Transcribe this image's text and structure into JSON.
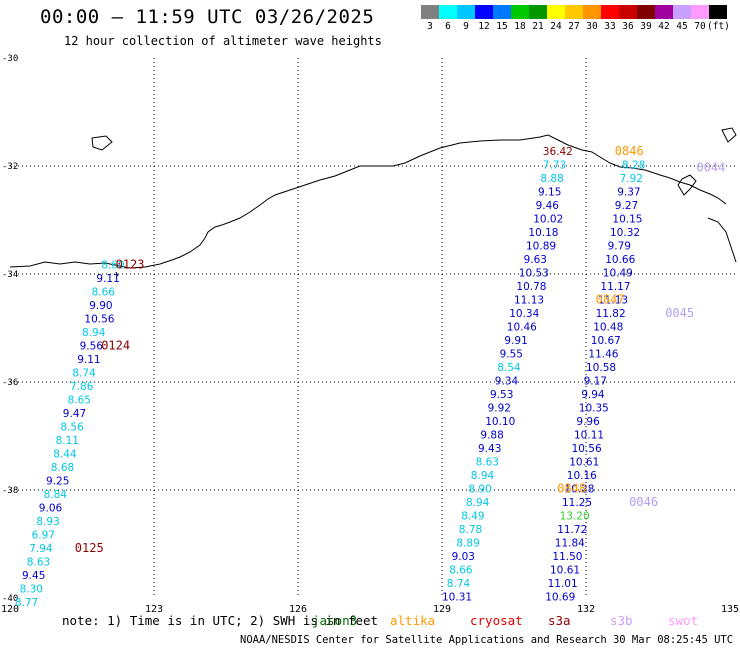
{
  "title": "00:00 – 11:59 UTC 03/26/2025",
  "subtitle": "12 hour collection of altimeter wave heights",
  "colorbar": {
    "colors": [
      "#808080",
      "#00ffff",
      "#00c8ff",
      "#0000ff",
      "#0078ff",
      "#00c800",
      "#009600",
      "#ffff00",
      "#ffc800",
      "#ff9600",
      "#ff0000",
      "#c80000",
      "#800000",
      "#a000a0",
      "#c8a0ff",
      "#ff9bff",
      "#000000"
    ],
    "labels": [
      "3",
      "6",
      "9",
      "12",
      "15",
      "18",
      "21",
      "24",
      "27",
      "30",
      "33",
      "36",
      "39",
      "42",
      "45",
      "70",
      "(ft)"
    ]
  },
  "axes": {
    "lat_labels": [
      "-30",
      "-32",
      "-34",
      "-36",
      "-38",
      "-40"
    ],
    "lon_labels": [
      "120",
      "123",
      "126",
      "129",
      "132",
      "135"
    ]
  },
  "note": {
    "prefix": "note: 1) Time is in UTC; 2) SWH is in feet",
    "satellites": [
      {
        "name": "jason3",
        "color": "#006400"
      },
      {
        "name": "altika",
        "color": "#ff9900"
      },
      {
        "name": "cryosat",
        "color": "#e00000"
      },
      {
        "name": "s3a",
        "color": "#8b0000"
      },
      {
        "name": "s3b",
        "color": "#c8a0ff"
      },
      {
        "name": "swot",
        "color": "#ff9bff"
      }
    ]
  },
  "credit": "NOAA/NESDIS Center for Satellite Applications and Research   30 Mar 08:25:45 UTC 2025",
  "tracks": [
    {
      "colors": {
        "cyan": "#00c8e6",
        "blue": "#0000cc"
      },
      "points": [
        {
          "v": "8.60",
          "c": "cyan",
          "lon": 121.9,
          "lat": -33.9
        },
        {
          "v": "9.11",
          "c": "blue",
          "lon": 121.8,
          "lat": -34.15
        },
        {
          "v": "8.66",
          "c": "cyan",
          "lon": 121.7,
          "lat": -34.4
        },
        {
          "v": "9.90",
          "c": "blue",
          "lon": 121.65,
          "lat": -34.65
        },
        {
          "v": "10.56",
          "c": "blue",
          "lon": 121.55,
          "lat": -34.9
        },
        {
          "v": "8.94",
          "c": "cyan",
          "lon": 121.5,
          "lat": -35.15
        },
        {
          "v": "9.56",
          "c": "blue",
          "lon": 121.45,
          "lat": -35.4
        },
        {
          "v": "9.11",
          "c": "blue",
          "lon": 121.4,
          "lat": -35.65
        },
        {
          "v": "8.74",
          "c": "cyan",
          "lon": 121.3,
          "lat": -35.9
        },
        {
          "v": "7.86",
          "c": "cyan",
          "lon": 121.25,
          "lat": -36.15
        },
        {
          "v": "8.65",
          "c": "cyan",
          "lon": 121.2,
          "lat": -36.4
        },
        {
          "v": "9.47",
          "c": "blue",
          "lon": 121.1,
          "lat": -36.65
        },
        {
          "v": "8.56",
          "c": "cyan",
          "lon": 121.05,
          "lat": -36.9
        },
        {
          "v": "8.11",
          "c": "cyan",
          "lon": 120.95,
          "lat": -37.15
        },
        {
          "v": "8.44",
          "c": "cyan",
          "lon": 120.9,
          "lat": -37.4
        },
        {
          "v": "8.68",
          "c": "cyan",
          "lon": 120.85,
          "lat": -37.65
        },
        {
          "v": "9.25",
          "c": "blue",
          "lon": 120.75,
          "lat": -37.9
        },
        {
          "v": "8.84",
          "c": "cyan",
          "lon": 120.7,
          "lat": -38.15
        },
        {
          "v": "9.06",
          "c": "blue",
          "lon": 120.6,
          "lat": -38.4
        },
        {
          "v": "8.93",
          "c": "cyan",
          "lon": 120.55,
          "lat": -38.65
        },
        {
          "v": "6.97",
          "c": "cyan",
          "lon": 120.45,
          "lat": -38.9
        },
        {
          "v": "7.94",
          "c": "cyan",
          "lon": 120.4,
          "lat": -39.15
        },
        {
          "v": "8.63",
          "c": "cyan",
          "lon": 120.35,
          "lat": -39.4
        },
        {
          "v": "9.45",
          "c": "blue",
          "lon": 120.25,
          "lat": -39.65
        },
        {
          "v": "8.30",
          "c": "cyan",
          "lon": 120.2,
          "lat": -39.9
        },
        {
          "v": "8.77",
          "c": "cyan",
          "lon": 120.1,
          "lat": -40.15
        }
      ]
    },
    {
      "points": [
        {
          "v": "10.31",
          "c": "blue",
          "lon": 129.0,
          "lat": -40.05
        },
        {
          "v": "8.74",
          "c": "cyan",
          "lon": 129.1,
          "lat": -39.8
        },
        {
          "v": "8.66",
          "c": "cyan",
          "lon": 129.15,
          "lat": -39.55
        },
        {
          "v": "9.03",
          "c": "blue",
          "lon": 129.2,
          "lat": -39.3
        },
        {
          "v": "8.89",
          "c": "cyan",
          "lon": 129.3,
          "lat": -39.05
        },
        {
          "v": "8.78",
          "c": "cyan",
          "lon": 129.35,
          "lat": -38.8
        },
        {
          "v": "8.49",
          "c": "cyan",
          "lon": 129.4,
          "lat": -38.55
        },
        {
          "v": "8.94",
          "c": "cyan",
          "lon": 129.5,
          "lat": -38.3
        },
        {
          "v": "8.90",
          "c": "cyan",
          "lon": 129.55,
          "lat": -38.05
        },
        {
          "v": "8.94",
          "c": "cyan",
          "lon": 129.6,
          "lat": -37.8
        },
        {
          "v": "8.63",
          "c": "cyan",
          "lon": 129.7,
          "lat": -37.55
        },
        {
          "v": "9.43",
          "c": "blue",
          "lon": 129.75,
          "lat": -37.3
        },
        {
          "v": "9.88",
          "c": "blue",
          "lon": 129.8,
          "lat": -37.05
        },
        {
          "v": "10.10",
          "c": "blue",
          "lon": 129.9,
          "lat": -36.8
        },
        {
          "v": "9.92",
          "c": "blue",
          "lon": 129.95,
          "lat": -36.55
        },
        {
          "v": "9.53",
          "c": "blue",
          "lon": 130.0,
          "lat": -36.3
        },
        {
          "v": "9.34",
          "c": "blue",
          "lon": 130.1,
          "lat": -36.05
        },
        {
          "v": "8.54",
          "c": "cyan",
          "lon": 130.15,
          "lat": -35.8
        },
        {
          "v": "9.55",
          "c": "blue",
          "lon": 130.2,
          "lat": -35.55
        },
        {
          "v": "9.91",
          "c": "blue",
          "lon": 130.3,
          "lat": -35.3
        },
        {
          "v": "10.46",
          "c": "blue",
          "lon": 130.35,
          "lat": -35.05
        },
        {
          "v": "10.34",
          "c": "blue",
          "lon": 130.4,
          "lat": -34.8
        },
        {
          "v": "11.13",
          "c": "blue",
          "lon": 130.5,
          "lat": -34.55
        },
        {
          "v": "10.78",
          "c": "blue",
          "lon": 130.55,
          "lat": -34.3
        },
        {
          "v": "10.53",
          "c": "blue",
          "lon": 130.6,
          "lat": -34.05
        },
        {
          "v": "9.63",
          "c": "blue",
          "lon": 130.7,
          "lat": -33.8
        },
        {
          "v": "10.89",
          "c": "blue",
          "lon": 130.75,
          "lat": -33.55
        },
        {
          "v": "10.18",
          "c": "blue",
          "lon": 130.8,
          "lat": -33.3
        },
        {
          "v": "10.02",
          "c": "blue",
          "lon": 130.9,
          "lat": -33.05
        },
        {
          "v": "9.46",
          "c": "blue",
          "lon": 130.95,
          "lat": -32.8
        },
        {
          "v": "9.15",
          "c": "blue",
          "lon": 131.0,
          "lat": -32.55
        },
        {
          "v": "8.88",
          "c": "cyan",
          "lon": 131.05,
          "lat": -32.3
        },
        {
          "v": "7.73",
          "c": "cyan",
          "lon": 131.1,
          "lat": -32.05
        },
        {
          "v": "36.42",
          "c": "darkred",
          "lon": 131.1,
          "lat": -31.8
        }
      ]
    },
    {
      "points": [
        {
          "v": "10.69",
          "c": "blue",
          "lon": 131.15,
          "lat": -40.05
        },
        {
          "v": "11.01",
          "c": "blue",
          "lon": 131.2,
          "lat": -39.8
        },
        {
          "v": "10.61",
          "c": "blue",
          "lon": 131.25,
          "lat": -39.55
        },
        {
          "v": "11.50",
          "c": "blue",
          "lon": 131.3,
          "lat": -39.3
        },
        {
          "v": "11.84",
          "c": "blue",
          "lon": 131.35,
          "lat": -39.05
        },
        {
          "v": "11.72",
          "c": "blue",
          "lon": 131.4,
          "lat": -38.8
        },
        {
          "v": "13.20",
          "c": "green",
          "lon": 131.45,
          "lat": -38.55
        },
        {
          "v": "11.25",
          "c": "blue",
          "lon": 131.5,
          "lat": -38.3
        },
        {
          "v": "10.28",
          "c": "blue",
          "lon": 131.55,
          "lat": -38.05
        },
        {
          "v": "10.16",
          "c": "blue",
          "lon": 131.6,
          "lat": -37.8
        },
        {
          "v": "10.61",
          "c": "blue",
          "lon": 131.65,
          "lat": -37.55
        },
        {
          "v": "10.56",
          "c": "blue",
          "lon": 131.7,
          "lat": -37.3
        },
        {
          "v": "10.11",
          "c": "blue",
          "lon": 131.75,
          "lat": -37.05
        },
        {
          "v": "9.96",
          "c": "blue",
          "lon": 131.8,
          "lat": -36.8
        },
        {
          "v": "10.35",
          "c": "blue",
          "lon": 131.85,
          "lat": -36.55
        },
        {
          "v": "9.94",
          "c": "blue",
          "lon": 131.9,
          "lat": -36.3
        },
        {
          "v": "9.17",
          "c": "blue",
          "lon": 131.95,
          "lat": -36.05
        },
        {
          "v": "10.58",
          "c": "blue",
          "lon": 132.0,
          "lat": -35.8
        },
        {
          "v": "11.46",
          "c": "blue",
          "lon": 132.05,
          "lat": -35.55
        },
        {
          "v": "10.67",
          "c": "blue",
          "lon": 132.1,
          "lat": -35.3
        },
        {
          "v": "10.48",
          "c": "blue",
          "lon": 132.15,
          "lat": -35.05
        },
        {
          "v": "11.82",
          "c": "blue",
          "lon": 132.2,
          "lat": -34.8
        },
        {
          "v": "11.13",
          "c": "blue",
          "lon": 132.25,
          "lat": -34.55
        },
        {
          "v": "11.17",
          "c": "blue",
          "lon": 132.3,
          "lat": -34.3
        },
        {
          "v": "10.49",
          "c": "blue",
          "lon": 132.35,
          "lat": -34.05
        },
        {
          "v": "10.66",
          "c": "blue",
          "lon": 132.4,
          "lat": -33.8
        },
        {
          "v": "9.79",
          "c": "blue",
          "lon": 132.45,
          "lat": -33.55
        },
        {
          "v": "10.32",
          "c": "blue",
          "lon": 132.5,
          "lat": -33.3
        },
        {
          "v": "10.15",
          "c": "blue",
          "lon": 132.55,
          "lat": -33.05
        },
        {
          "v": "9.27",
          "c": "blue",
          "lon": 132.6,
          "lat": -32.8
        },
        {
          "v": "9.37",
          "c": "blue",
          "lon": 132.65,
          "lat": -32.55
        },
        {
          "v": "7.92",
          "c": "cyan",
          "lon": 132.7,
          "lat": -32.3
        },
        {
          "v": "8.28",
          "c": "cyan",
          "lon": 132.75,
          "lat": -32.05
        }
      ]
    }
  ],
  "pass_labels": [
    {
      "text": "0123",
      "c": "darkred",
      "lon": 121.2,
      "lat": -33.9
    },
    {
      "text": "0124",
      "c": "darkred",
      "lon": 120.9,
      "lat": -35.4
    },
    {
      "text": "0125",
      "c": "darkred",
      "lon": 120.35,
      "lat": -39.15
    },
    {
      "text": "0846",
      "c": "orange",
      "lon": 131.6,
      "lat": -31.8
    },
    {
      "text": "0847",
      "c": "orange",
      "lon": 131.2,
      "lat": -34.55
    },
    {
      "text": "0848",
      "c": "orange",
      "lon": 130.4,
      "lat": -38.05
    },
    {
      "text": "0044",
      "c": "lavender",
      "lon": 133.3,
      "lat": -32.1
    },
    {
      "text": "0045",
      "c": "lavender",
      "lon": 132.65,
      "lat": -34.8
    },
    {
      "text": "0046",
      "c": "lavender",
      "lon": 131.9,
      "lat": -38.3
    }
  ],
  "label_colors": {
    "cyan": "#00c8e6",
    "blue": "#0000cc",
    "darkred": "#8b0000",
    "green": "#33cc33",
    "orange": "#ff9900",
    "lavender": "#b4a0f0"
  }
}
